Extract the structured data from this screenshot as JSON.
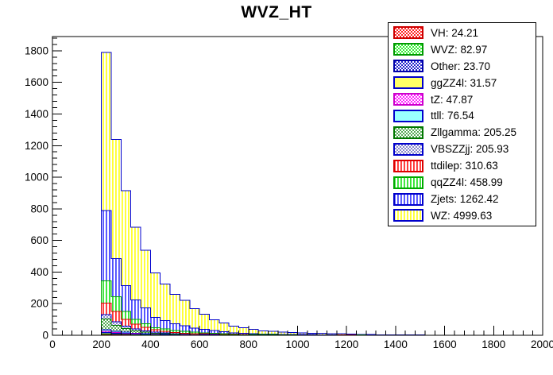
{
  "title": "WVZ_HT",
  "colors": {
    "background": "#ffffff",
    "frame": "#000000",
    "axis_text": "#000000",
    "legend_border": "#000000"
  },
  "chart_data": {
    "type": "bar",
    "stacked": true,
    "title": "WVZ_HT",
    "xlabel": "",
    "ylabel": "",
    "xlim": [
      0,
      2000
    ],
    "ylim": [
      0,
      1890
    ],
    "x_ticks": [
      0,
      200,
      400,
      600,
      800,
      1000,
      1200,
      1400,
      1600,
      1800,
      2000
    ],
    "y_ticks": [
      0,
      200,
      400,
      600,
      800,
      1000,
      1200,
      1400,
      1600,
      1800
    ],
    "x_minor_step": 40,
    "y_minor_step": 40,
    "grid": false,
    "legend_position": "top-right",
    "bin_start": 200,
    "bin_width": 40,
    "n_bins": 33,
    "series": [
      {
        "name": "VH",
        "legend_label": "VH: 24.21",
        "integral": 24.21,
        "line_color": "#cc0000",
        "fill_type": "checker",
        "fill_color": "#ff2222",
        "values": [
          3,
          2.1,
          1.5,
          1,
          0.7,
          0.5,
          0.36,
          0.25,
          0.18,
          0.15,
          0.14,
          0.12,
          0.09,
          0.08,
          0.075,
          0.07,
          0.06,
          0.06,
          0.055,
          0.05,
          0.05,
          0.05,
          0.045,
          0.04,
          0.04,
          0.04,
          0.035,
          0.025,
          0.02,
          0.02,
          0.02,
          0.02,
          0.02
        ]
      },
      {
        "name": "WVZ",
        "legend_label": "WVZ: 82.97",
        "integral": 82.97,
        "line_color": "#009900",
        "fill_type": "checker",
        "fill_color": "#33ee33",
        "values": [
          5,
          3.5,
          2.5,
          1.8,
          1.2,
          0.9,
          0.64,
          0.45,
          0.32,
          0.25,
          0.24,
          0.2,
          0.15,
          0.14,
          0.125,
          0.12,
          0.1,
          0.1,
          0.095,
          0.09,
          0.08,
          0.08,
          0.075,
          0.07,
          0.07,
          0.06,
          0.055,
          0.045,
          0.04,
          0.04,
          0.04,
          0.03,
          0.03
        ]
      },
      {
        "name": "Other",
        "legend_label": "Other: 23.70",
        "integral": 23.7,
        "line_color": "#0000aa",
        "fill_type": "checker",
        "fill_color": "#2222cc",
        "values": [
          2,
          1.4,
          1,
          0.7,
          0.5,
          0.3,
          0.2,
          0.15,
          0.1,
          0.1,
          0.1,
          0.08,
          0.06,
          0.06,
          0.05,
          0.05,
          0.04,
          0.04,
          0.04,
          0.04,
          0.04,
          0.03,
          0.03,
          0.03,
          0.03,
          0.03,
          0.02,
          0.02,
          0.02,
          0.02,
          0.01,
          0.01,
          0.01
        ]
      },
      {
        "name": "ggZZ4l",
        "legend_label": "ggZZ4l: 31.57",
        "integral": 31.57,
        "line_color": "#0000cc",
        "fill_type": "solid",
        "fill_color": "#ffff66",
        "values": [
          8,
          5.5,
          4,
          2.7,
          1.8,
          1.3,
          0.9,
          0.65,
          0.5,
          0.4,
          0.37,
          0.3,
          0.25,
          0.22,
          0.2,
          0.18,
          0.15,
          0.15,
          0.15,
          0.14,
          0.13,
          0.12,
          0.12,
          0.11,
          0.11,
          0.1,
          0.08,
          0.07,
          0.06,
          0.06,
          0.05,
          0.04,
          0.04
        ]
      },
      {
        "name": "tZ",
        "legend_label": "tZ: 47.87",
        "integral": 47.87,
        "line_color": "#cc00cc",
        "fill_type": "checker",
        "fill_color": "#ff22ff",
        "values": [
          8,
          5.5,
          4,
          2.8,
          1.8,
          1.2,
          0.9,
          0.6,
          0.5,
          0.4,
          0.35,
          0.3,
          0.25,
          0.2,
          0.2,
          0.18,
          0.15,
          0.15,
          0.14,
          0.13,
          0.12,
          0.12,
          0.11,
          0.1,
          0.1,
          0.1,
          0.08,
          0.07,
          0.06,
          0.06,
          0.05,
          0.04,
          0.04
        ]
      },
      {
        "name": "ttll",
        "legend_label": "ttll: 76.54",
        "integral": 76.54,
        "line_color": "#0000cc",
        "fill_type": "solid",
        "fill_color": "#99ffff",
        "values": [
          10,
          8,
          6,
          4,
          3,
          2.3,
          1.5,
          1.1,
          0.9,
          0.7,
          0.6,
          0.5,
          0.4,
          0.3,
          0.3,
          0.25,
          0.25,
          0.25,
          0.22,
          0.2,
          0.18,
          0.2,
          0.17,
          0.15,
          0.15,
          0.17,
          0.13,
          0.12,
          0.1,
          0.1,
          0.08,
          0.06,
          0.06
        ]
      },
      {
        "name": "Zllgamma",
        "legend_label": "Zllgamma: 205.25",
        "integral": 205.25,
        "line_color": "#007700",
        "fill_type": "checker",
        "fill_color": "#55aa55",
        "values": [
          68,
          36,
          23,
          15,
          10,
          6.5,
          4.5,
          3.3,
          2.5,
          2,
          1.7,
          1.5,
          1.2,
          1,
          0.95,
          0.85,
          0.75,
          0.75,
          0.65,
          0.65,
          0.65,
          0.6,
          0.55,
          0.55,
          0.5,
          0.5,
          0.4,
          0.35,
          0.35,
          0.3,
          0.25,
          0.25,
          0.25
        ]
      },
      {
        "name": "VBSZZjj",
        "legend_label": "VBSZZjj: 205.93",
        "integral": 205.93,
        "line_color": "#0000cc",
        "fill_type": "checker",
        "fill_color": "#8888cc",
        "values": [
          26,
          23,
          15,
          12,
          9,
          7,
          5,
          3.5,
          2.5,
          2,
          2,
          1.5,
          1.2,
          1,
          0.9,
          0.7,
          0.5,
          0.5,
          0.45,
          0.4,
          0.35,
          0.3,
          0.3,
          0.25,
          0.25,
          0.2,
          0.15,
          0.1,
          0.1,
          0.1,
          0.1,
          0.1,
          0.1
        ]
      },
      {
        "name": "ttdilep",
        "legend_label": "ttdilep: 310.63",
        "integral": 310.63,
        "line_color": "#dd0000",
        "fill_type": "vstripe",
        "fill_color": "#ff0000",
        "values": [
          73,
          65,
          43,
          30,
          22,
          15,
          11,
          8,
          5.5,
          4,
          3.5,
          2.5,
          1.9,
          1.5,
          1.2,
          1,
          0.8,
          0.7,
          0.6,
          0.5,
          0.5,
          0.4,
          0.3,
          0.3,
          0.25,
          0.2,
          0.15,
          0.1,
          0.1,
          0.1,
          0.1,
          0.05,
          0.05
        ]
      },
      {
        "name": "qqZZ4l",
        "legend_label": "qqZZ4l: 458.99",
        "integral": 458.99,
        "line_color": "#00aa00",
        "fill_type": "vstripe",
        "fill_color": "#00dd00",
        "values": [
          142,
          95,
          50,
          30,
          24,
          14,
          14,
          12,
          12,
          9,
          7,
          5,
          4,
          2.5,
          2,
          1.6,
          1.2,
          1.1,
          0.9,
          0.8,
          0.7,
          0.6,
          0.5,
          0.4,
          0.4,
          0.3,
          0.2,
          0.2,
          0.15,
          0.1,
          0.1,
          0.1,
          0.1
        ]
      },
      {
        "name": "Zjets",
        "legend_label": "Zjets: 1262.42",
        "integral": 1262.42,
        "line_color": "#0000cc",
        "fill_type": "vstripe",
        "fill_color": "#2222ff",
        "values": [
          445,
          240,
          165,
          124,
          100,
          65,
          55,
          44,
          35,
          27,
          22,
          17,
          12.5,
          8,
          6,
          4.5,
          3,
          2.7,
          2.2,
          2,
          1.7,
          1.5,
          1.3,
          1,
          0.9,
          0.8,
          0.5,
          0.4,
          0.3,
          0.2,
          0.2,
          0.1,
          0.1
        ]
      },
      {
        "name": "WZ",
        "legend_label": "WZ: 4999.63",
        "integral": 4999.63,
        "line_color": "#0000cc",
        "fill_type": "vstripe",
        "fill_color": "#ffff00",
        "values": [
          1000,
          755,
          600,
          460,
          365,
          280,
          230,
          185,
          160,
          122,
          95,
          70,
          55,
          44,
          37,
          28,
          20,
          18,
          15,
          13.5,
          11,
          9.5,
          8,
          7.3,
          6.5,
          5.8,
          3.5,
          2.7,
          2.3,
          2,
          1.6,
          1.3,
          1.2
        ]
      }
    ]
  }
}
